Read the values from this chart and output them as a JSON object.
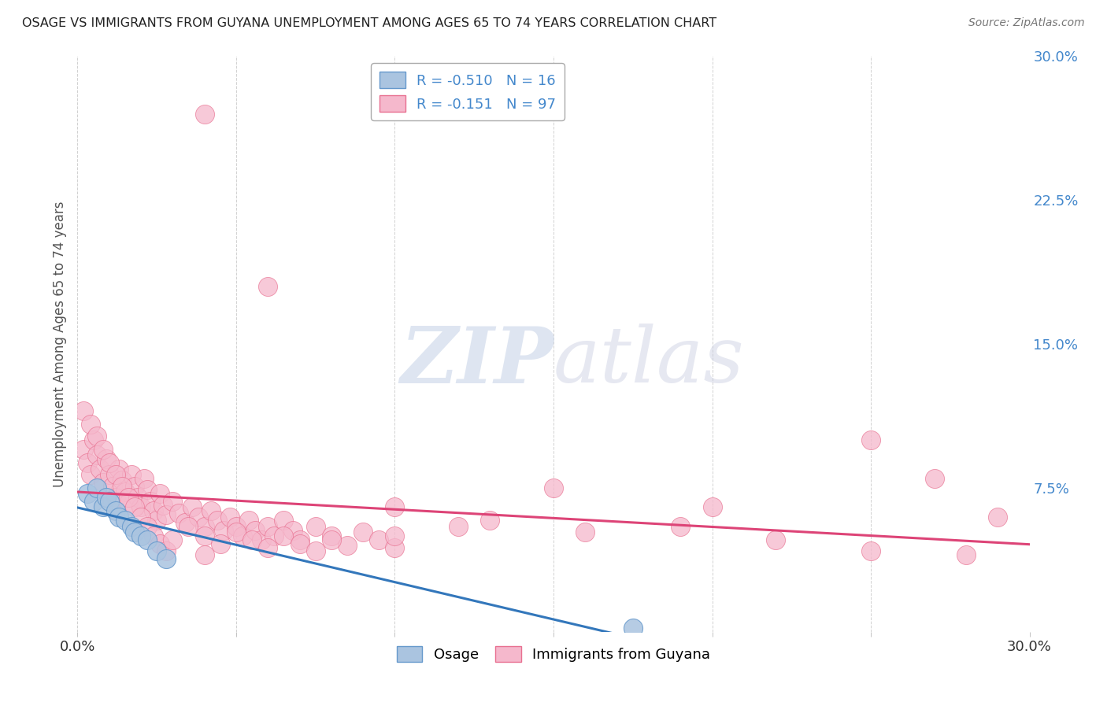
{
  "title": "OSAGE VS IMMIGRANTS FROM GUYANA UNEMPLOYMENT AMONG AGES 65 TO 74 YEARS CORRELATION CHART",
  "source": "Source: ZipAtlas.com",
  "ylabel": "Unemployment Among Ages 65 to 74 years",
  "xlim": [
    0.0,
    0.3
  ],
  "ylim": [
    0.0,
    0.3
  ],
  "xtick_vals": [
    0.0,
    0.05,
    0.1,
    0.15,
    0.2,
    0.25,
    0.3
  ],
  "xtick_labels": [
    "0.0%",
    "",
    "",
    "",
    "",
    "",
    "30.0%"
  ],
  "yticks_right": [
    0.0,
    0.075,
    0.15,
    0.225,
    0.3
  ],
  "ytick_right_labels": [
    "",
    "7.5%",
    "15.0%",
    "22.5%",
    "30.0%"
  ],
  "series1_name": "Osage",
  "series2_name": "Immigrants from Guyana",
  "series1_face_color": "#aac4e0",
  "series1_edge_color": "#6699cc",
  "series2_face_color": "#f5b8cc",
  "series2_edge_color": "#e87090",
  "trend1_color": "#3377bb",
  "trend2_color": "#dd4477",
  "watermark": "ZIPatlas",
  "background_color": "#ffffff",
  "grid_color": "#cccccc",
  "axis_label_color": "#555555",
  "right_tick_color": "#4488cc",
  "series1_R": -0.51,
  "series1_N": 16,
  "series2_R": -0.151,
  "series2_N": 97,
  "osage_x": [
    0.003,
    0.005,
    0.006,
    0.008,
    0.009,
    0.01,
    0.012,
    0.013,
    0.015,
    0.017,
    0.018,
    0.02,
    0.022,
    0.025,
    0.028,
    0.175
  ],
  "osage_y": [
    0.072,
    0.068,
    0.075,
    0.065,
    0.07,
    0.068,
    0.063,
    0.06,
    0.058,
    0.055,
    0.052,
    0.05,
    0.048,
    0.042,
    0.038,
    0.002
  ],
  "guyana_x": [
    0.002,
    0.003,
    0.004,
    0.005,
    0.006,
    0.007,
    0.008,
    0.009,
    0.01,
    0.011,
    0.012,
    0.013,
    0.014,
    0.015,
    0.016,
    0.017,
    0.018,
    0.019,
    0.02,
    0.021,
    0.022,
    0.023,
    0.024,
    0.025,
    0.026,
    0.027,
    0.028,
    0.03,
    0.032,
    0.034,
    0.036,
    0.038,
    0.04,
    0.042,
    0.044,
    0.046,
    0.048,
    0.05,
    0.052,
    0.054,
    0.056,
    0.058,
    0.06,
    0.062,
    0.065,
    0.068,
    0.07,
    0.075,
    0.08,
    0.085,
    0.09,
    0.095,
    0.1,
    0.002,
    0.004,
    0.006,
    0.008,
    0.01,
    0.012,
    0.014,
    0.016,
    0.018,
    0.02,
    0.022,
    0.024,
    0.026,
    0.028,
    0.03,
    0.035,
    0.04,
    0.045,
    0.05,
    0.055,
    0.06,
    0.065,
    0.07,
    0.075,
    0.08,
    0.04,
    0.06,
    0.1,
    0.13,
    0.16,
    0.19,
    0.22,
    0.25,
    0.28,
    0.29,
    0.25,
    0.27,
    0.2,
    0.15,
    0.12,
    0.1,
    0.04
  ],
  "guyana_y": [
    0.095,
    0.088,
    0.082,
    0.1,
    0.092,
    0.085,
    0.078,
    0.09,
    0.082,
    0.076,
    0.07,
    0.085,
    0.079,
    0.073,
    0.067,
    0.082,
    0.076,
    0.07,
    0.065,
    0.08,
    0.074,
    0.068,
    0.063,
    0.058,
    0.072,
    0.066,
    0.061,
    0.068,
    0.062,
    0.057,
    0.065,
    0.06,
    0.055,
    0.063,
    0.058,
    0.053,
    0.06,
    0.055,
    0.05,
    0.058,
    0.053,
    0.048,
    0.055,
    0.05,
    0.058,
    0.053,
    0.048,
    0.055,
    0.05,
    0.045,
    0.052,
    0.048,
    0.044,
    0.115,
    0.108,
    0.102,
    0.095,
    0.088,
    0.082,
    0.076,
    0.07,
    0.065,
    0.06,
    0.055,
    0.05,
    0.046,
    0.042,
    0.048,
    0.055,
    0.05,
    0.046,
    0.052,
    0.048,
    0.044,
    0.05,
    0.046,
    0.042,
    0.048,
    0.27,
    0.18,
    0.065,
    0.058,
    0.052,
    0.055,
    0.048,
    0.042,
    0.04,
    0.06,
    0.1,
    0.08,
    0.065,
    0.075,
    0.055,
    0.05,
    0.04
  ]
}
